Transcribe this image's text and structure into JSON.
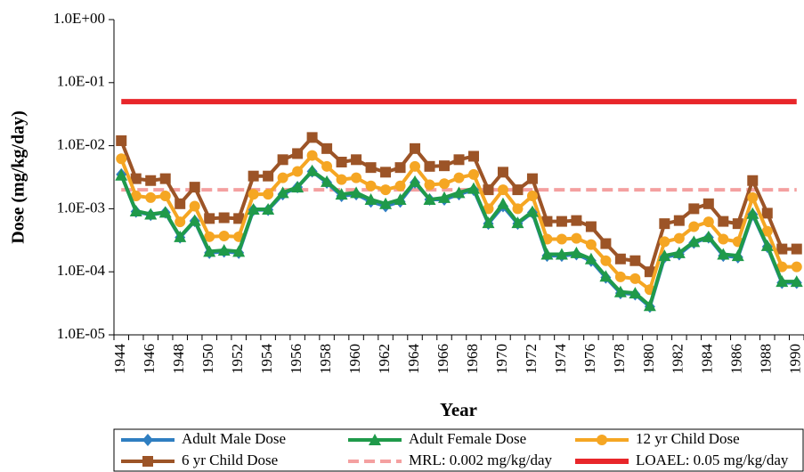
{
  "chart_data": {
    "type": "line",
    "log_y": true,
    "x_label": "Year",
    "y_label": "Dose (mg/kg/day)",
    "categories": [
      "1944",
      null,
      "1946",
      null,
      "1948",
      null,
      "1950",
      null,
      "1952",
      null,
      "1954",
      null,
      "1956",
      null,
      "1958",
      null,
      "1960",
      null,
      "1962",
      null,
      "1964",
      null,
      "1966",
      null,
      "1968",
      null,
      "1970",
      null,
      "1972",
      null,
      "1974",
      null,
      "1976",
      null,
      "1978",
      null,
      "1980",
      null,
      "1982",
      null,
      "1984",
      null,
      "1986",
      null,
      "1988",
      null,
      "1990"
    ],
    "ylim": [
      1e-05,
      1
    ],
    "yticks": [
      {
        "value": 1,
        "label": "1.0E+00"
      },
      {
        "value": 0.1,
        "label": "1.0E-01"
      },
      {
        "value": 0.01,
        "label": "1.0E-02"
      },
      {
        "value": 0.001,
        "label": "1.0E-03"
      },
      {
        "value": 0.0001,
        "label": "1.0E-04"
      },
      {
        "value": 1e-05,
        "label": "1.0E-05"
      }
    ],
    "series": [
      {
        "name": "Adult Male Dose",
        "color": "#2f7ec1",
        "marker": "diamond",
        "values": [
          0.0035,
          0.0009,
          0.0008,
          0.00087,
          0.00035,
          0.00064,
          0.0002,
          0.00021,
          0.0002,
          0.00096,
          0.00096,
          0.0017,
          0.0022,
          0.0039,
          0.0026,
          0.0016,
          0.0017,
          0.0013,
          0.0011,
          0.0013,
          0.0026,
          0.0014,
          0.0014,
          0.0017,
          0.002,
          0.00058,
          0.0011,
          0.00058,
          0.00087,
          0.00018,
          0.00018,
          0.00019,
          0.00015,
          8.1e-05,
          4.6e-05,
          4.4e-05,
          2.8e-05,
          0.00017,
          0.00019,
          0.00029,
          0.00035,
          0.00018,
          0.00017,
          0.00081,
          0.00025,
          6.7e-05,
          6.7e-05
        ]
      },
      {
        "name": "Adult Female Dose",
        "color": "#1f9a4a",
        "marker": "triangle",
        "values": [
          0.0034,
          0.00092,
          0.00082,
          0.00088,
          0.00036,
          0.00065,
          0.00021,
          0.00022,
          0.00021,
          0.00098,
          0.00098,
          0.0018,
          0.0022,
          0.004,
          0.0027,
          0.0017,
          0.0018,
          0.0014,
          0.0012,
          0.0014,
          0.0027,
          0.0014,
          0.0015,
          0.0018,
          0.0021,
          0.0006,
          0.0012,
          0.0006,
          0.0009,
          0.00019,
          0.00019,
          0.0002,
          0.00016,
          8.5e-05,
          4.8e-05,
          4.6e-05,
          2.9e-05,
          0.00018,
          0.0002,
          0.0003,
          0.00036,
          0.00019,
          0.00018,
          0.00084,
          0.00026,
          7e-05,
          7e-05
        ]
      },
      {
        "name": "12 yr Child Dose",
        "color": "#f5a623",
        "marker": "circle",
        "values": [
          0.0062,
          0.0016,
          0.0015,
          0.0016,
          0.00062,
          0.0011,
          0.00036,
          0.00037,
          0.00036,
          0.0017,
          0.0017,
          0.0031,
          0.0039,
          0.007,
          0.0047,
          0.0029,
          0.0031,
          0.0023,
          0.002,
          0.0023,
          0.0047,
          0.0024,
          0.0025,
          0.0031,
          0.0035,
          0.001,
          0.002,
          0.001,
          0.0016,
          0.00033,
          0.00033,
          0.00034,
          0.00027,
          0.00015,
          8.3e-05,
          7.8e-05,
          5.2e-05,
          0.0003,
          0.00034,
          0.00052,
          0.00062,
          0.00033,
          0.0003,
          0.0015,
          0.00044,
          0.00012,
          0.00012
        ]
      },
      {
        "name": "6 yr Child Dose",
        "color": "#9c5427",
        "marker": "square",
        "values": [
          0.012,
          0.003,
          0.0028,
          0.003,
          0.0012,
          0.0022,
          0.0007,
          0.00072,
          0.0007,
          0.0033,
          0.0033,
          0.006,
          0.0075,
          0.0135,
          0.009,
          0.0055,
          0.006,
          0.0045,
          0.0038,
          0.0045,
          0.009,
          0.0047,
          0.0048,
          0.006,
          0.0068,
          0.002,
          0.0038,
          0.002,
          0.003,
          0.00063,
          0.00063,
          0.00065,
          0.00052,
          0.00028,
          0.00016,
          0.00015,
          0.0001,
          0.00058,
          0.00065,
          0.001,
          0.0012,
          0.00063,
          0.00058,
          0.0028,
          0.00085,
          0.00023,
          0.00023
        ]
      },
      {
        "name": "MRL: 0.002 mg/kg/day",
        "color": "#f4a0a0",
        "line_style": "dashed",
        "value": 0.002
      },
      {
        "name": "LOAEL: 0.05 mg/kg/day",
        "color": "#e8262a",
        "line_style": "solid",
        "value": 0.05
      }
    ]
  }
}
